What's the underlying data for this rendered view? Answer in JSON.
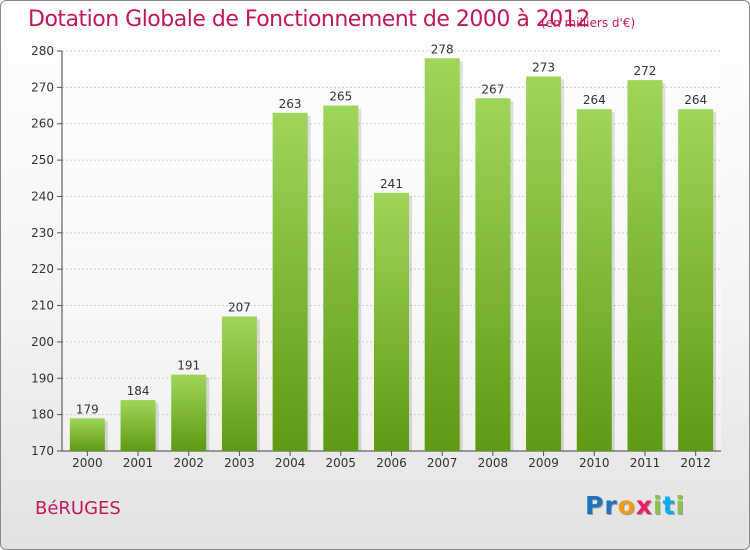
{
  "header": {
    "title": "Dotation Globale de Fonctionnement de 2000 à 2012",
    "unit": "(en milliers d'€)"
  },
  "commune": "BéRUGES",
  "brand": {
    "letters": [
      "P",
      "r",
      "o",
      "x",
      "i",
      "t",
      "i"
    ],
    "colors": [
      "#1e73be",
      "#1e73be",
      "#f39c12",
      "#e91e63",
      "#8bc34a",
      "#00aeef",
      "#8bc34a"
    ]
  },
  "colors": {
    "bar_top": "#9fd65a",
    "bar_bottom": "#5e9a12",
    "accent": "#c2185b"
  },
  "chart_data": {
    "type": "bar",
    "categories": [
      "2000",
      "2001",
      "2002",
      "2003",
      "2004",
      "2005",
      "2006",
      "2007",
      "2008",
      "2009",
      "2010",
      "2011",
      "2012"
    ],
    "values": [
      179,
      184,
      191,
      207,
      263,
      265,
      241,
      278,
      267,
      273,
      264,
      272,
      264
    ],
    "ylim": [
      170,
      280
    ],
    "yticks": [
      170,
      180,
      190,
      200,
      210,
      220,
      230,
      240,
      250,
      260,
      270,
      280
    ],
    "grid": true,
    "data_labels": true
  }
}
